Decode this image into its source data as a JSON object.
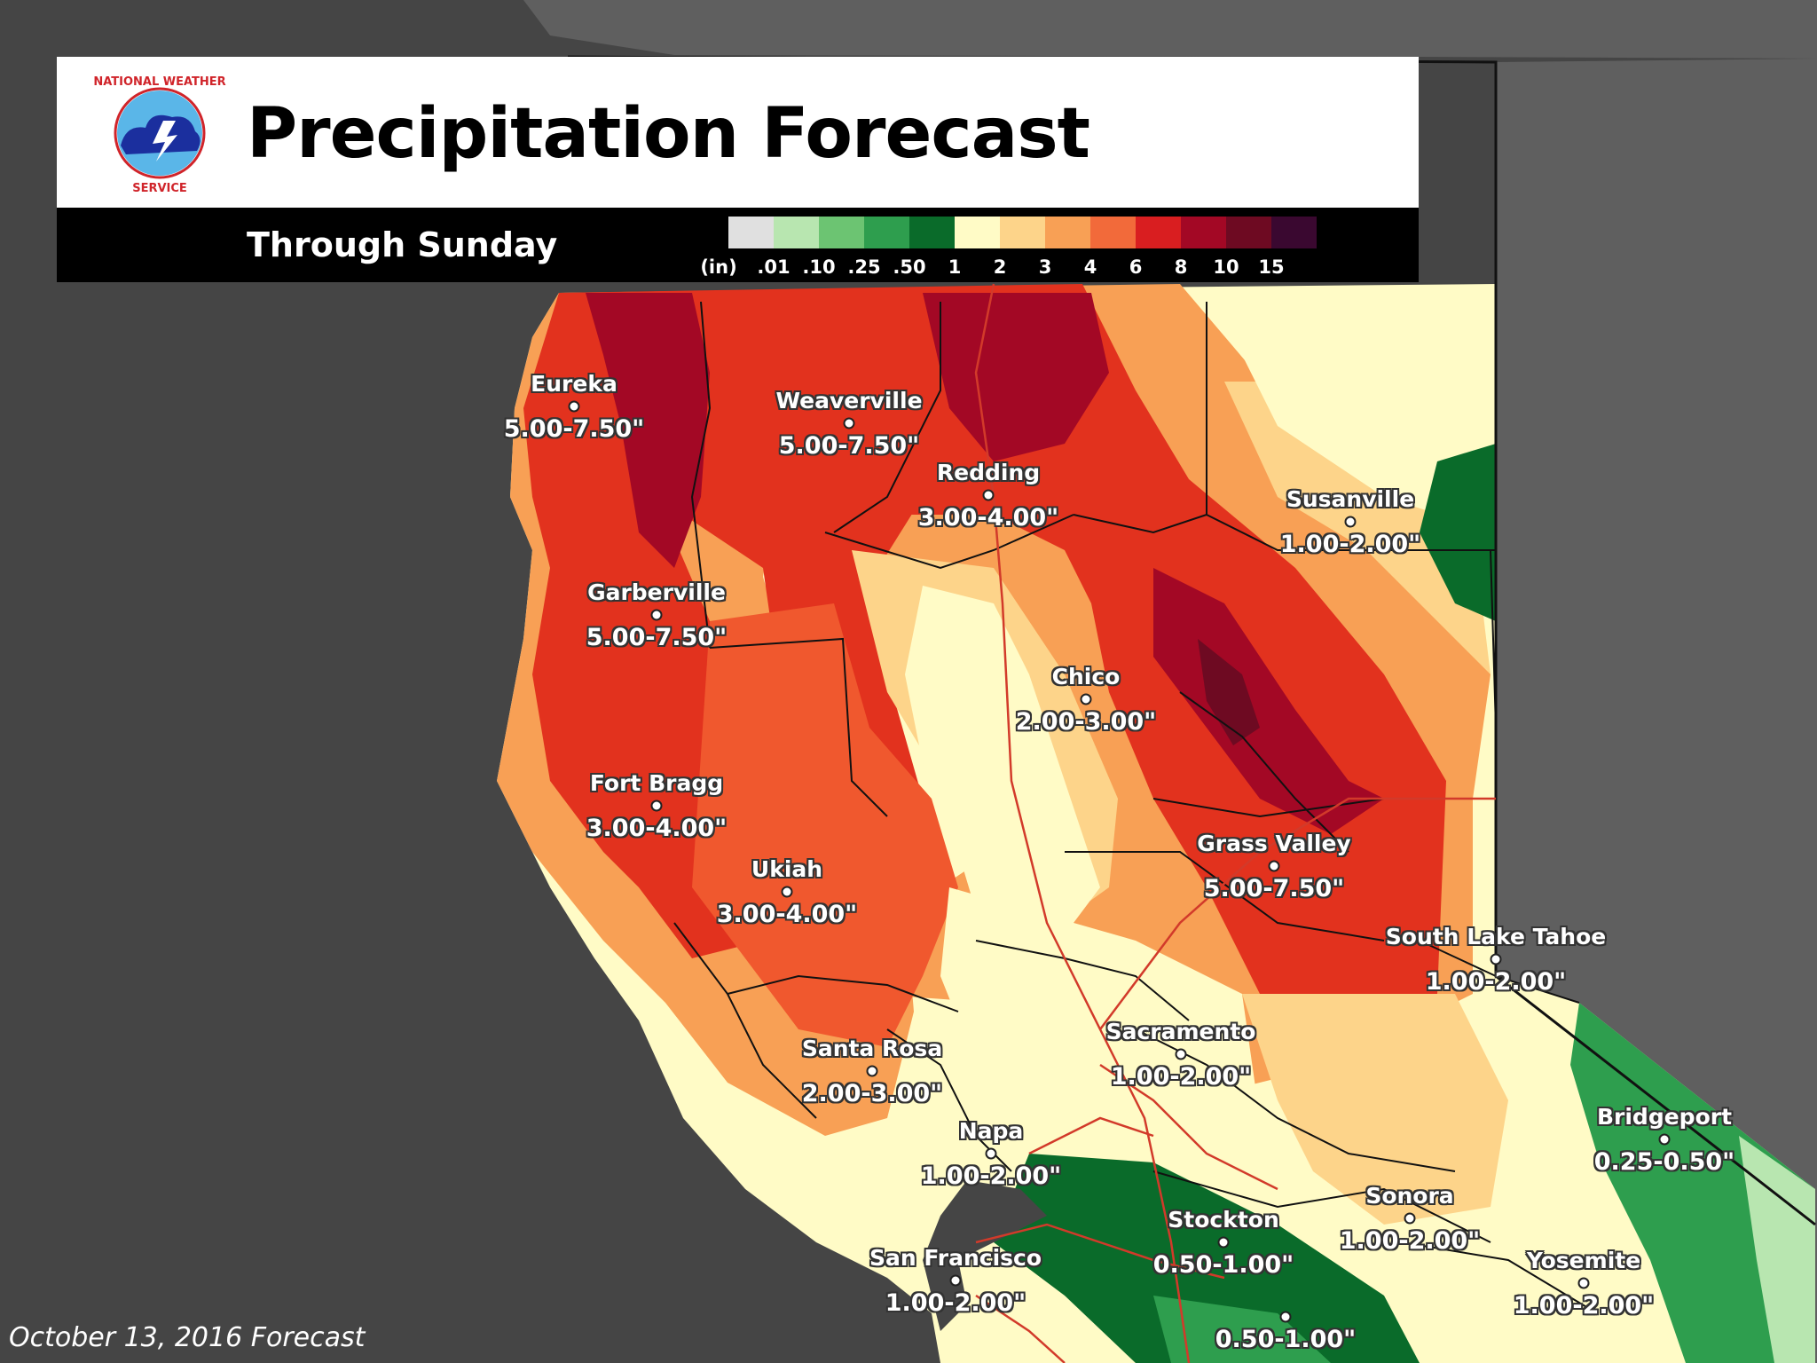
{
  "header": {
    "title": "Precipitation Forecast",
    "subtitle": "Through Sunday",
    "logo_text": "NATIONAL WEATHER SERVICE"
  },
  "legend": {
    "unit": "(in)",
    "ticks": [
      ".01",
      ".10",
      ".25",
      ".50",
      "1",
      "2",
      "3",
      "4",
      "6",
      "8",
      "10",
      "15"
    ],
    "colors": [
      "#e0e0e0",
      "#b8e6b0",
      "#6cc472",
      "#2e9e4e",
      "#0a6b2a",
      "#fffbc6",
      "#fdd48a",
      "#f8a055",
      "#f26a3a",
      "#d91e20",
      "#a30825",
      "#6e0a22",
      "#3a0830"
    ]
  },
  "cities": [
    {
      "id": "eureka",
      "name": "Eureka",
      "range": "5.00-7.50\""
    },
    {
      "id": "weaverville",
      "name": "Weaverville",
      "range": "5.00-7.50\""
    },
    {
      "id": "redding",
      "name": "Redding",
      "range": "3.00-4.00\""
    },
    {
      "id": "susanville",
      "name": "Susanville",
      "range": "1.00-2.00\""
    },
    {
      "id": "garberville",
      "name": "Garberville",
      "range": "5.00-7.50\""
    },
    {
      "id": "chico",
      "name": "Chico",
      "range": "2.00-3.00\""
    },
    {
      "id": "fort-bragg",
      "name": "Fort Bragg",
      "range": "3.00-4.00\""
    },
    {
      "id": "grass-valley",
      "name": "Grass Valley",
      "range": "5.00-7.50\""
    },
    {
      "id": "ukiah",
      "name": "Ukiah",
      "range": "3.00-4.00\""
    },
    {
      "id": "south-lake-tahoe",
      "name": "South Lake Tahoe",
      "range": "1.00-2.00\""
    },
    {
      "id": "sacramento",
      "name": "Sacramento",
      "range": "1.00-2.00\""
    },
    {
      "id": "santa-rosa",
      "name": "Santa Rosa",
      "range": "2.00-3.00\""
    },
    {
      "id": "bridgeport",
      "name": "Bridgeport",
      "range": "0.25-0.50\""
    },
    {
      "id": "napa",
      "name": "Napa",
      "range": "1.00-2.00\""
    },
    {
      "id": "stockton",
      "name": "Stockton",
      "range": "0.50-1.00\""
    },
    {
      "id": "sonora",
      "name": "Sonora",
      "range": "1.00-2.00\""
    },
    {
      "id": "san-francisco",
      "name": "San Francisco",
      "range": "1.00-2.00\""
    },
    {
      "id": "yosemite",
      "name": "Yosemite",
      "range": "1.00-2.00\""
    },
    {
      "id": "unnamed-south",
      "name": "",
      "range": "0.50-1.00\""
    }
  ],
  "footer": {
    "date": "October 13, 2016 Forecast"
  }
}
